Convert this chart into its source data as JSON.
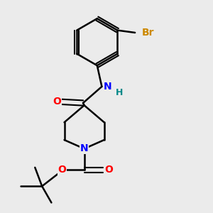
{
  "background_color": "#ebebeb",
  "bond_color": "#000000",
  "bond_width": 1.8,
  "atom_labels": {
    "O_amide": {
      "text": "O",
      "color": "#ff0000",
      "fontsize": 10
    },
    "N_amide": {
      "text": "N",
      "color": "#0000ff",
      "fontsize": 10
    },
    "H_amide": {
      "text": "H",
      "color": "#008888",
      "fontsize": 9
    },
    "N_pip": {
      "text": "N",
      "color": "#0000ff",
      "fontsize": 10
    },
    "O_boc1": {
      "text": "O",
      "color": "#ff0000",
      "fontsize": 10
    },
    "O_boc2": {
      "text": "O",
      "color": "#ff0000",
      "fontsize": 10
    },
    "Br": {
      "text": "Br",
      "color": "#cc8800",
      "fontsize": 10
    }
  }
}
